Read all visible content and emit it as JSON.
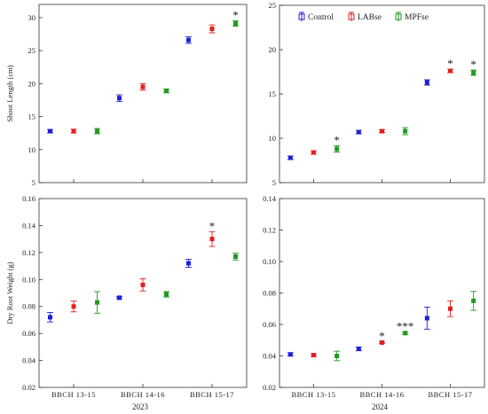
{
  "colors": {
    "Control": "#1f1fd6",
    "LABse": "#e02020",
    "MPFse": "#1f9a1f"
  },
  "legend": {
    "entries": [
      "Control",
      "LABse",
      "MPFse"
    ],
    "placement": "top-center"
  },
  "years": [
    "2023",
    "2024"
  ],
  "chart_data": [
    {
      "type": "scatter",
      "categories": [
        "BBCH 13-15",
        "BBCH 14-16",
        "BBCH 15-17"
      ],
      "ylabel": "Shoot Length (cm)",
      "ylim": [
        5,
        32
      ],
      "yticks": [
        "5",
        "10",
        "15",
        "20",
        "25",
        "30"
      ],
      "show_xticklabels": false,
      "series": [
        {
          "name": "Control",
          "values": [
            12.8,
            17.8,
            26.6
          ],
          "errors": [
            0.25,
            0.5,
            0.5
          ],
          "stars": [
            "",
            "",
            ""
          ]
        },
        {
          "name": "LABse",
          "values": [
            12.8,
            19.5,
            28.3
          ],
          "errors": [
            0.3,
            0.5,
            0.6
          ],
          "stars": [
            "",
            "",
            ""
          ]
        },
        {
          "name": "MPFse",
          "values": [
            12.8,
            18.9,
            29.1
          ],
          "errors": [
            0.4,
            0.3,
            0.4
          ],
          "stars": [
            "",
            "",
            "*"
          ]
        }
      ]
    },
    {
      "type": "scatter",
      "categories": [
        "BBCH 13-15",
        "BBCH 14-16",
        "BBCH 15-17"
      ],
      "ylabel": "",
      "ylim": [
        5,
        25
      ],
      "yticks": [
        "5",
        "10",
        "15",
        "20",
        "25"
      ],
      "show_xticklabels": false,
      "series": [
        {
          "name": "Control",
          "values": [
            7.8,
            10.7,
            16.3
          ],
          "errors": [
            0.2,
            0.2,
            0.3
          ],
          "stars": [
            "",
            "",
            ""
          ]
        },
        {
          "name": "LABse",
          "values": [
            8.4,
            10.8,
            17.6
          ],
          "errors": [
            0.2,
            0.15,
            0.2
          ],
          "stars": [
            "",
            "",
            "*"
          ]
        },
        {
          "name": "MPFse",
          "values": [
            8.8,
            10.8,
            17.4
          ],
          "errors": [
            0.35,
            0.4,
            0.3
          ],
          "stars": [
            "*",
            "",
            "*"
          ]
        }
      ]
    },
    {
      "type": "scatter",
      "categories": [
        "BBCH 13-15",
        "BBCH 14-16",
        "BBCH 15-17"
      ],
      "ylabel": "Dry Root Weight (g)",
      "ylim": [
        0.02,
        0.16
      ],
      "yticks": [
        "0.02",
        "0.04",
        "0.06",
        "0.08",
        "0.10",
        "0.12",
        "0.14",
        "0.16"
      ],
      "show_xticklabels": true,
      "series": [
        {
          "name": "Control",
          "values": [
            0.072,
            0.0865,
            0.112
          ],
          "errors": [
            0.0035,
            0.0008,
            0.003
          ],
          "stars": [
            "",
            "",
            ""
          ]
        },
        {
          "name": "LABse",
          "values": [
            0.08,
            0.096,
            0.13
          ],
          "errors": [
            0.004,
            0.0045,
            0.0055
          ],
          "stars": [
            "",
            "",
            "*"
          ]
        },
        {
          "name": "MPFse",
          "values": [
            0.083,
            0.089,
            0.117
          ],
          "errors": [
            0.008,
            0.002,
            0.0025
          ],
          "stars": [
            "",
            "",
            ""
          ]
        }
      ]
    },
    {
      "type": "scatter",
      "categories": [
        "BBCH 13-15",
        "BBCH 14-16",
        "BBCH 15-17"
      ],
      "ylabel": "",
      "ylim": [
        0.02,
        0.14
      ],
      "yticks": [
        "0.02",
        "0.04",
        "0.06",
        "0.08",
        "0.10",
        "0.12",
        "0.14"
      ],
      "show_xticklabels": true,
      "series": [
        {
          "name": "Control",
          "values": [
            0.041,
            0.0445,
            0.064
          ],
          "errors": [
            0.001,
            0.0012,
            0.007
          ],
          "stars": [
            "",
            "",
            ""
          ]
        },
        {
          "name": "LABse",
          "values": [
            0.0405,
            0.0485,
            0.07
          ],
          "errors": [
            0.0008,
            0.0006,
            0.005
          ],
          "stars": [
            "",
            "*",
            ""
          ]
        },
        {
          "name": "MPFse",
          "values": [
            0.04,
            0.0545,
            0.075
          ],
          "errors": [
            0.003,
            0.0008,
            0.006
          ],
          "stars": [
            "",
            "***",
            ""
          ]
        }
      ]
    }
  ]
}
